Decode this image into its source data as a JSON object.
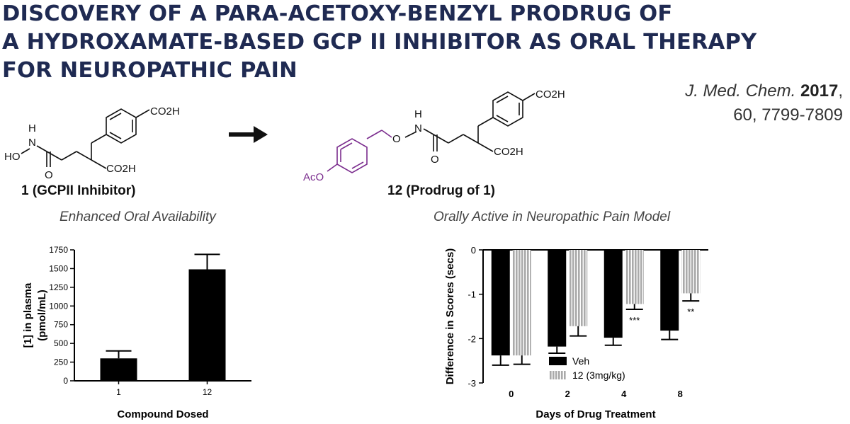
{
  "header": {
    "title_lines": [
      "DISCOVERY OF A PARA-ACETOXY-BENZYL PRODRUG OF",
      "A HYDROXAMATE-BASED GCP II INHIBITOR AS ORAL THERAPY",
      "FOR NEUROPATHIC PAIN"
    ],
    "citation": {
      "journal": "J. Med. Chem.",
      "year": "2017",
      "volume_pages": "60, 7799-7809"
    }
  },
  "scheme": {
    "compound1": {
      "label": "1 (GCPII Inhibitor)",
      "groups": [
        "CO2H",
        "HO",
        "H",
        "N",
        "O",
        "CO2H"
      ]
    },
    "compound12": {
      "label": "12 (Prodrug of 1)",
      "groups": [
        "CO2H",
        "H",
        "N",
        "O",
        "O",
        "AcO",
        "CO2H"
      ]
    },
    "arrow": "right-arrow-icon",
    "prodrug_color": "#7b2d8e"
  },
  "chart_data": [
    {
      "type": "bar",
      "title": "Enhanced Oral Availability",
      "xlabel": "Compound Dosed",
      "ylabel_lines": [
        "[1] in plasma",
        "(pmol/mL)"
      ],
      "categories": [
        "1",
        "12"
      ],
      "values": [
        300,
        1490
      ],
      "errors": [
        100,
        200
      ],
      "ylim": [
        0,
        1750
      ],
      "yticks": [
        0,
        250,
        500,
        750,
        1000,
        1250,
        1500,
        1750
      ],
      "colors": [
        "#000000"
      ]
    },
    {
      "type": "bar",
      "title": "Orally Active in Neuropathic Pain Model",
      "xlabel": "Days of Drug Treatment",
      "ylabel": "Difference in Scores (secs)",
      "categories": [
        "0",
        "2",
        "4",
        "8"
      ],
      "series": [
        {
          "name": "Veh",
          "values": [
            -2.38,
            -2.18,
            -1.98,
            -1.82
          ],
          "errors": [
            0.22,
            0.15,
            0.17,
            0.2
          ],
          "color": "#000000"
        },
        {
          "name": "12 (3mg/kg)",
          "values": [
            -2.38,
            -1.72,
            -1.22,
            -0.98
          ],
          "errors": [
            0.2,
            0.22,
            0.12,
            0.17
          ],
          "color": "#aaaaaa"
        }
      ],
      "annotations": [
        {
          "category": "4",
          "series": "12 (3mg/kg)",
          "text": "***"
        },
        {
          "category": "8",
          "series": "12 (3mg/kg)",
          "text": "**"
        }
      ],
      "ylim": [
        -3,
        0
      ],
      "yticks": [
        0,
        -1,
        -2,
        -3
      ],
      "legend": "bottom-left"
    }
  ]
}
